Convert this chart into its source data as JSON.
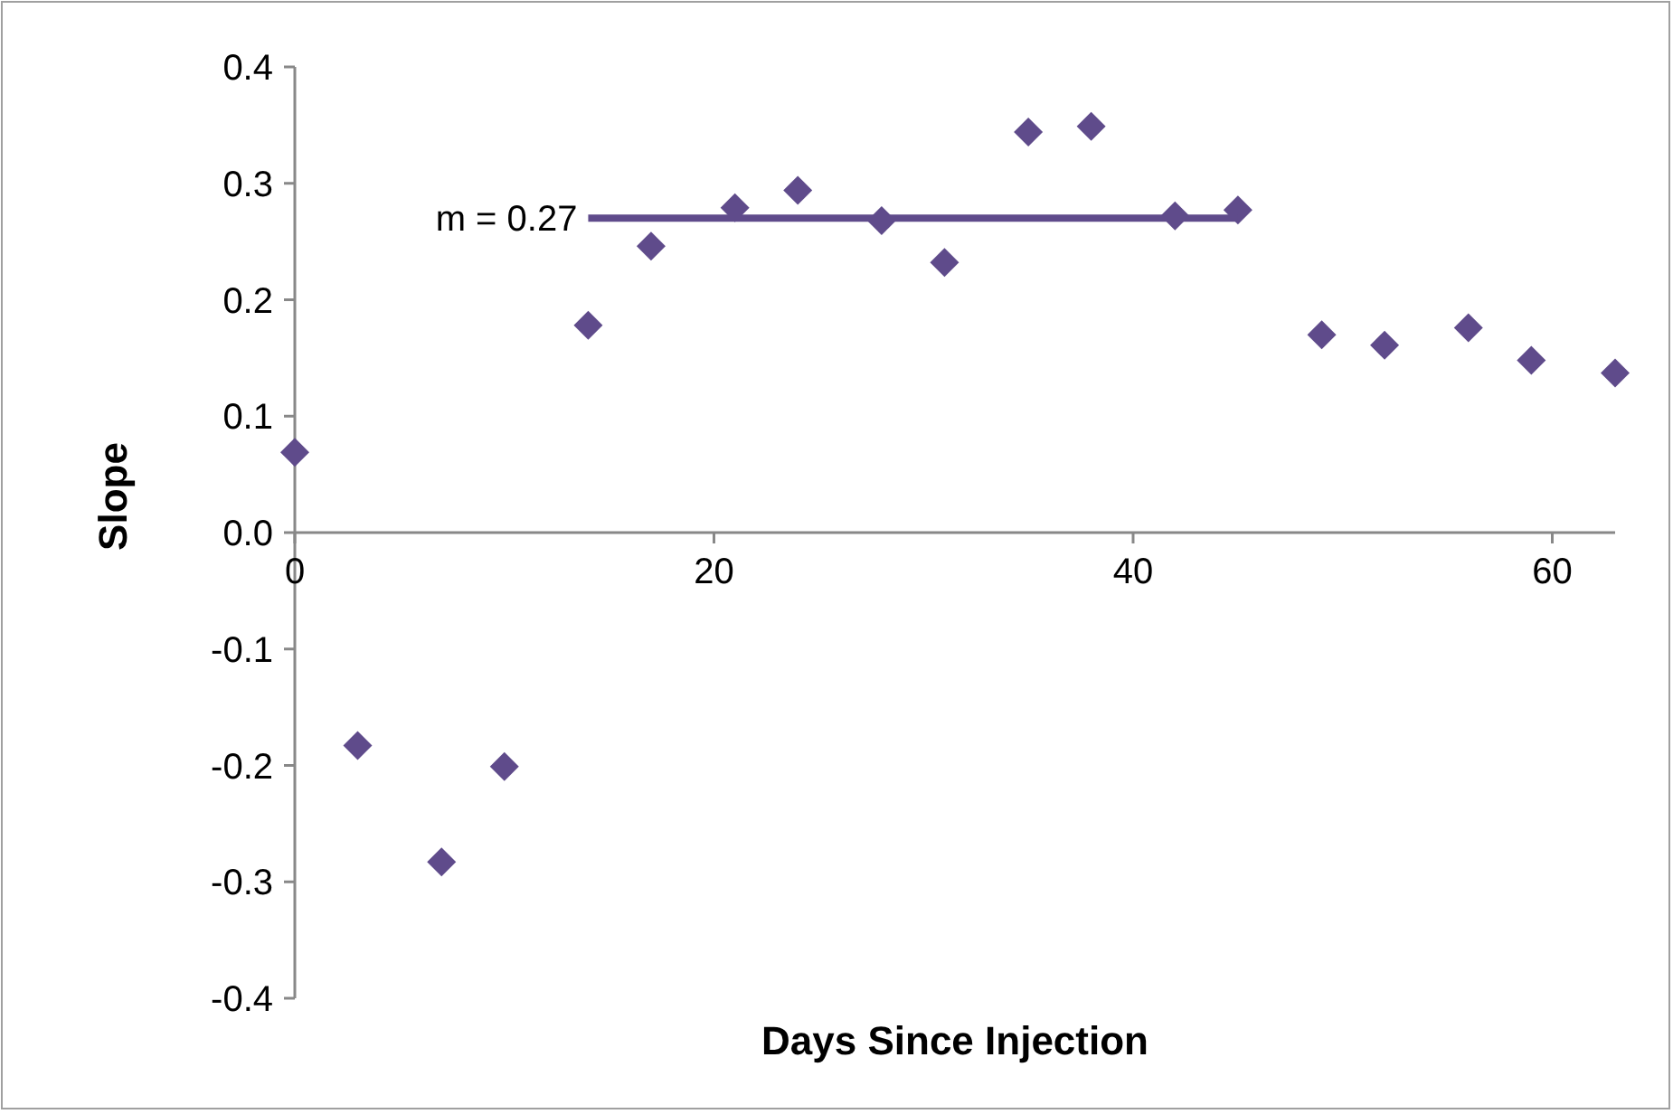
{
  "chart_data": {
    "type": "scatter",
    "xlabel": "Days Since Injection",
    "ylabel": "Slope",
    "x": [
      0,
      3,
      7,
      10,
      14,
      17,
      21,
      24,
      28,
      31,
      35,
      38,
      42,
      45,
      49,
      52,
      56,
      59,
      63
    ],
    "series": [
      {
        "color": "#5f4b8b",
        "values": [
          0.069,
          -0.183,
          -0.283,
          -0.201,
          0.178,
          0.246,
          0.279,
          0.294,
          0.268,
          0.232,
          0.344,
          0.349,
          0.272,
          0.277,
          0.17,
          0.161,
          0.176,
          0.148,
          0.137
        ]
      },
      {
        "type": "line",
        "marker": "none",
        "color": "#5f4b8b",
        "x": [
          14,
          45
        ],
        "values": [
          0.27,
          0.27
        ]
      }
    ],
    "xlim": [
      0,
      63
    ],
    "xticks": [
      0,
      20,
      40,
      60
    ],
    "ylim": [
      -0.4,
      0.4
    ],
    "yticks": [
      {
        "value": -0.4,
        "label": "-0.4"
      },
      {
        "value": -0.3,
        "label": "-0.3"
      },
      {
        "value": -0.2,
        "label": "-0.2"
      },
      {
        "value": -0.1,
        "label": "-0.1"
      },
      {
        "value": 0,
        "label": "0.0"
      },
      {
        "value": 0.1,
        "label": "0.1"
      },
      {
        "value": 0.2,
        "label": "0.2"
      },
      {
        "value": 0.3,
        "label": "0.3"
      },
      {
        "value": 0.4,
        "label": "0.4"
      }
    ],
    "annotations": [
      {
        "text": "m = 0.27",
        "x": 14,
        "y": 0.27
      }
    ],
    "marker": "diamond",
    "grid": false
  }
}
